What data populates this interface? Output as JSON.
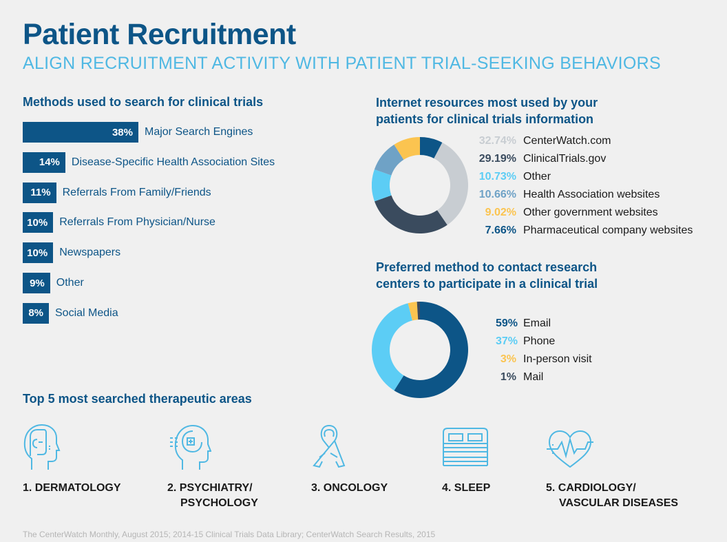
{
  "header": {
    "title": "Patient Recruitment",
    "subtitle": "ALIGN RECRUITMENT ACTIVITY WITH PATIENT TRIAL-SEEKING BEHAVIORS"
  },
  "colors": {
    "navy": "#0d5587",
    "light_blue": "#4fb8e3",
    "gray": "#c8cdd2",
    "slate": "#3a4b5e",
    "sky": "#5ccdf5",
    "steel": "#6fa2c6",
    "yellow": "#fbc450"
  },
  "chart_data": [
    {
      "type": "bar",
      "title": "Methods used to search for clinical trials",
      "categories": [
        "Major Search Engines",
        "Disease-Specific Health Association Sites",
        "Referrals From Family/Friends",
        "Referrals From Physician/Nurse",
        "Newspapers",
        "Other",
        "Social Media"
      ],
      "values": [
        38,
        14,
        11,
        10,
        10,
        9,
        8
      ],
      "value_labels": [
        "38%",
        "14%",
        "11%",
        "10%",
        "10%",
        "9%",
        "8%"
      ],
      "orientation": "horizontal"
    },
    {
      "type": "pie",
      "title_line1": "Internet resources most used by your",
      "title_line2": "patients for clinical trials information",
      "labels": [
        "CenterWatch.com",
        "ClinicalTrials.gov",
        "Other",
        "Health Association websites",
        "Other government websites",
        "Pharmaceutical company websites"
      ],
      "values": [
        32.74,
        29.19,
        10.73,
        10.66,
        9.02,
        7.66
      ],
      "value_labels": [
        "32.74%",
        "29.19%",
        "10.73%",
        "10.66%",
        "9.02%",
        "7.66%"
      ],
      "colors": [
        "#c8cdd2",
        "#3a4b5e",
        "#5ccdf5",
        "#6fa2c6",
        "#fbc450",
        "#0d5587"
      ],
      "donut": true
    },
    {
      "type": "pie",
      "title_line1": "Preferred method to contact research",
      "title_line2": "centers to participate in a clinical trial",
      "labels": [
        "Email",
        "Phone",
        "In-person visit",
        "Mail"
      ],
      "values": [
        59,
        37,
        3,
        1
      ],
      "value_labels": [
        "59%",
        "37%",
        "3%",
        "1%"
      ],
      "colors": [
        "#0d5587",
        "#5ccdf5",
        "#fbc450",
        "#3a4b5e"
      ],
      "donut": true
    }
  ],
  "areas": {
    "title": "Top 5 most searched therapeutic areas",
    "items": [
      {
        "icon": "head-icon",
        "line1": "1. DERMATOLOGY",
        "line2": ""
      },
      {
        "icon": "brain-head-icon",
        "line1": "2. PSYCHIATRY/",
        "line2": "PSYCHOLOGY"
      },
      {
        "icon": "ribbon-icon",
        "line1": "3. ONCOLOGY",
        "line2": ""
      },
      {
        "icon": "bed-icon",
        "line1": "4. SLEEP",
        "line2": ""
      },
      {
        "icon": "heart-pulse-icon",
        "line1": "5. CARDIOLOGY/",
        "line2": "VASCULAR DISEASES"
      }
    ]
  },
  "footer": "The CenterWatch Monthly, August 2015; 2014-15 Clinical Trials Data Library; CenterWatch Search Results, 2015"
}
